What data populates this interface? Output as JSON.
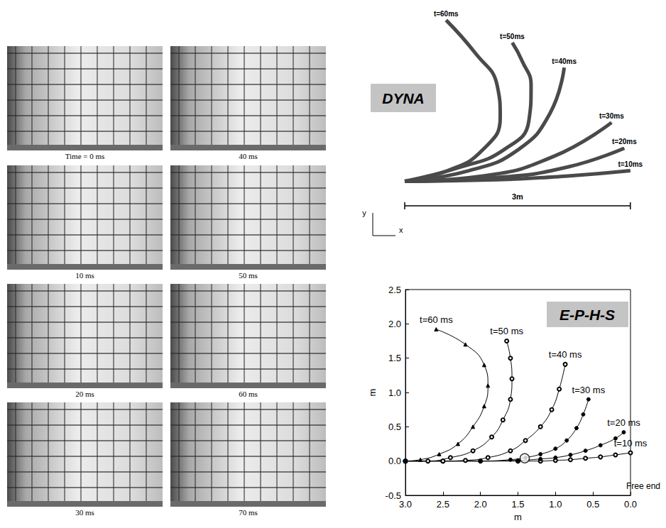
{
  "photo_panels": [
    {
      "caption": "Time = 0 ms"
    },
    {
      "caption": "10 ms"
    },
    {
      "caption": "20 ms"
    },
    {
      "caption": "30 ms"
    },
    {
      "caption": "40 ms"
    },
    {
      "caption": "50 ms"
    },
    {
      "caption": "60 ms"
    },
    {
      "caption": "70 ms"
    }
  ],
  "chart_data": [
    {
      "type": "line",
      "title": "DYNA",
      "xlabel": "x",
      "ylabel": "y",
      "xlim": [
        0,
        3.2
      ],
      "ylim": [
        -0.1,
        2.2
      ],
      "tick_labels": false,
      "grid": false,
      "scale_bar": {
        "length": 3,
        "label": "3m"
      },
      "series": [
        {
          "name": "t=10ms",
          "color": "#4a4a4a",
          "marker": "none",
          "x": [
            0,
            1.23,
            2.17,
            3.0
          ],
          "values": [
            0,
            0.02,
            0.07,
            0.14
          ]
        },
        {
          "name": "t=20ms",
          "color": "#4a4a4a",
          "marker": "none",
          "x": [
            0,
            1.23,
            2.17,
            2.92
          ],
          "values": [
            0,
            0.05,
            0.19,
            0.44
          ]
        },
        {
          "name": "t=30ms",
          "color": "#4a4a4a",
          "marker": "none",
          "x": [
            0,
            1.04,
            1.98,
            2.75
          ],
          "values": [
            0,
            0.07,
            0.33,
            0.78
          ]
        },
        {
          "name": "t=40ms",
          "color": "#4a4a4a",
          "marker": "none",
          "x": [
            0,
            0.85,
            1.51,
            1.93,
            2.12
          ],
          "values": [
            0,
            0.14,
            0.42,
            0.9,
            1.51
          ]
        },
        {
          "name": "t=50ms",
          "color": "#4a4a4a",
          "marker": "none",
          "x": [
            0,
            0.75,
            1.32,
            1.65,
            1.68,
            1.56,
            1.43
          ],
          "values": [
            0,
            0.19,
            0.42,
            0.8,
            1.27,
            1.6,
            1.84
          ]
        },
        {
          "name": "t=60ms",
          "color": "#4a4a4a",
          "marker": "none",
          "x": [
            0,
            0.57,
            1.04,
            1.27,
            1.23,
            0.94,
            0.55
          ],
          "values": [
            0,
            0.14,
            0.42,
            0.85,
            1.27,
            1.7,
            2.14
          ]
        }
      ]
    },
    {
      "type": "line",
      "title": "E-P-H-S",
      "xlabel": "m",
      "ylabel": "m",
      "xlim": [
        3.0,
        0.0
      ],
      "ylim": [
        -0.5,
        2.5
      ],
      "xticks": [
        {
          "value": 3,
          "label": "3.0"
        },
        2.5,
        {
          "value": 2,
          "label": "2.0"
        },
        1.5,
        {
          "value": 1,
          "label": "1.0"
        },
        0.5,
        {
          "value": 0,
          "label": "0.0"
        }
      ],
      "yticks": [
        -0.5,
        {
          "value": 0,
          "label": "0.0"
        },
        0.5,
        {
          "value": 1,
          "label": "1.0"
        },
        1.5,
        {
          "value": 2,
          "label": "2.0"
        },
        2.5
      ],
      "grid": false,
      "annotations": [
        {
          "text": "Free end"
        }
      ],
      "highlight": {
        "x": 1.41,
        "y": 0.04
      },
      "series": [
        {
          "name": "t=10 ms",
          "color": "#000000",
          "marker": "circle-open",
          "x": [
            3.0,
            2.5,
            2.0,
            1.5,
            1.2,
            1.0,
            0.8,
            0.6,
            0.4,
            0.2,
            0.0
          ],
          "values": [
            0,
            0,
            0,
            0,
            0,
            0.01,
            0.02,
            0.04,
            0.06,
            0.09,
            0.12
          ]
        },
        {
          "name": "t=20 ms",
          "color": "#000000",
          "marker": "circle",
          "x": [
            3.0,
            2.5,
            2.0,
            1.5,
            1.2,
            1.0,
            0.8,
            0.6,
            0.4,
            0.2,
            0.09
          ],
          "values": [
            0,
            0,
            0,
            0.01,
            0.03,
            0.05,
            0.09,
            0.15,
            0.23,
            0.33,
            0.42
          ]
        },
        {
          "name": "t=30 ms",
          "color": "#000000",
          "marker": "circle",
          "x": [
            3.0,
            2.5,
            2.0,
            1.6,
            1.4,
            1.2,
            1.0,
            0.85,
            0.72,
            0.63,
            0.56
          ],
          "values": [
            0,
            0,
            0,
            0.02,
            0.05,
            0.1,
            0.18,
            0.3,
            0.48,
            0.68,
            0.9
          ]
        },
        {
          "name": "t=40 ms",
          "color": "#000000",
          "marker": "circle-open",
          "x": [
            3.0,
            2.5,
            2.2,
            1.9,
            1.6,
            1.4,
            1.2,
            1.05,
            0.95,
            0.87
          ],
          "values": [
            0,
            0,
            0.01,
            0.05,
            0.15,
            0.3,
            0.5,
            0.75,
            1.05,
            1.41
          ]
        },
        {
          "name": "t=50 ms",
          "color": "#000000",
          "marker": "circle-open",
          "x": [
            3.0,
            2.7,
            2.4,
            2.1,
            1.85,
            1.7,
            1.6,
            1.58,
            1.6,
            1.65
          ],
          "values": [
            0,
            0,
            0.05,
            0.15,
            0.35,
            0.6,
            0.9,
            1.2,
            1.5,
            1.75
          ]
        },
        {
          "name": "t=60 ms",
          "color": "#000000",
          "marker": "triangle",
          "x": [
            3.0,
            2.8,
            2.55,
            2.3,
            2.1,
            1.95,
            1.9,
            1.95,
            2.2,
            2.59
          ],
          "values": [
            0,
            0.02,
            0.1,
            0.25,
            0.5,
            0.8,
            1.1,
            1.4,
            1.7,
            1.92
          ]
        }
      ]
    }
  ]
}
